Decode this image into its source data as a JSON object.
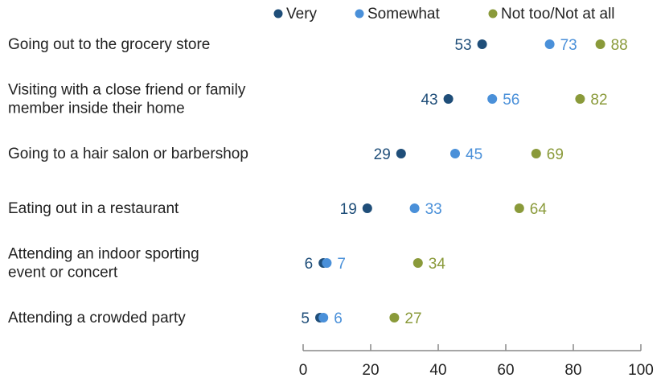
{
  "chart_data": {
    "type": "scatter",
    "title": "",
    "xlabel": "",
    "ylabel": "",
    "xlim": [
      0,
      100
    ],
    "xticks": [
      0,
      20,
      40,
      60,
      80,
      100
    ],
    "grid": false,
    "legend_position": "top",
    "categories": [
      [
        "Going out to the grocery store"
      ],
      [
        "Visiting with a close friend or family",
        "member inside their home"
      ],
      [
        "Going to a hair salon or barbershop"
      ],
      [
        "Eating out in a restaurant"
      ],
      [
        "Attending an indoor sporting",
        "event or concert"
      ],
      [
        "Attending a crowded party"
      ]
    ],
    "series": [
      {
        "name": "Very",
        "color": "#1f4e79",
        "values": [
          53,
          43,
          29,
          19,
          6,
          5
        ]
      },
      {
        "name": "Somewhat",
        "color": "#4a90d9",
        "values": [
          73,
          56,
          45,
          33,
          7,
          6
        ]
      },
      {
        "name": "Not too/Not at all",
        "color": "#8a9a3a",
        "values": [
          88,
          82,
          69,
          64,
          34,
          27
        ]
      }
    ]
  }
}
